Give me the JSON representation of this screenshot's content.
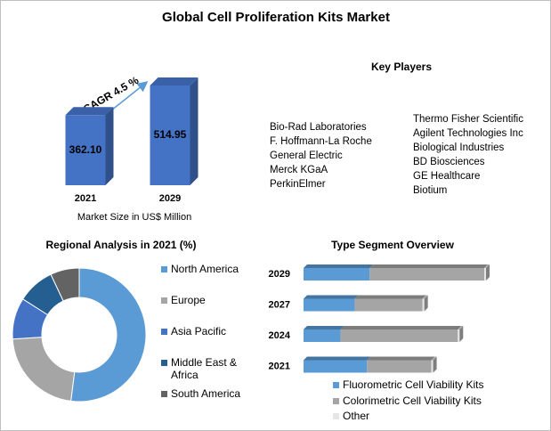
{
  "title": "Global Cell Proliferation Kits Market",
  "key_players": {
    "title": "Key Players",
    "columns": [
      [
        "Bio-Rad Laboratories",
        "F. Hoffmann-La Roche",
        "General Electric",
        "Merck KGaA",
        "PerkinElmer"
      ],
      [
        "Thermo Fisher Scientific",
        "Agilent Technologies Inc",
        "Biological Industries",
        "BD Biosciences",
        "GE Healthcare",
        "Biotium"
      ]
    ]
  },
  "chart_data": [
    {
      "type": "bar",
      "categories": [
        "2021",
        "2029"
      ],
      "values": [
        362.1,
        514.95
      ],
      "value_labels": [
        "362.10",
        "514.95"
      ],
      "color": "#4472c4",
      "annotation": "CAGR 4.5 %",
      "xlabel": "Market Size in US$ Million"
    },
    {
      "type": "donut",
      "title": "Regional Analysis in 2021 (%)",
      "categories": [
        "North America",
        "Europe",
        "Asia Pacific",
        "Middle East & Africa",
        "South America"
      ],
      "values": [
        52,
        22,
        10,
        9,
        7
      ],
      "colors": [
        "#5b9bd5",
        "#a5a5a5",
        "#4472c4",
        "#255e91",
        "#636363"
      ]
    },
    {
      "type": "stackedbar",
      "title": "Type Segment Overview",
      "categories": [
        "2029",
        "2027",
        "2024",
        "2021"
      ],
      "series": [
        {
          "name": "Fluorometric Cell Viability Kits",
          "color": "#5b9bd5",
          "values": [
            75,
            58,
            42,
            72
          ]
        },
        {
          "name": "Colorimetric Cell Viability Kits",
          "color": "#a5a5a5",
          "values": [
            130,
            77,
            133,
            73
          ]
        },
        {
          "name": "Other",
          "color": "#e7e6e6",
          "values": [
            2,
            2,
            2,
            2
          ]
        }
      ]
    }
  ]
}
